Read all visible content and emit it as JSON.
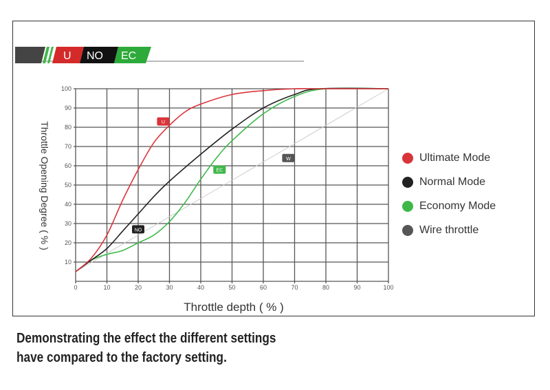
{
  "logo": {
    "segments": [
      "U",
      "NO",
      "EC"
    ],
    "colors": {
      "U": "#d42a2a",
      "NO": "#111111",
      "EC": "#2daa3a"
    }
  },
  "chart_data": {
    "type": "line",
    "xlabel": "Throttle depth ( % )",
    "ylabel": "Throttle Opening Degree ( % )",
    "xlim": [
      0,
      100
    ],
    "ylim": [
      0,
      100
    ],
    "xticks": [
      0,
      10,
      20,
      30,
      40,
      50,
      60,
      70,
      80,
      90,
      100
    ],
    "yticks": [
      10,
      20,
      30,
      40,
      50,
      60,
      70,
      80,
      90,
      100
    ],
    "grid": true,
    "legend_position": "right",
    "series": [
      {
        "name": "Ultimate Mode",
        "tag": "U",
        "color": "#d9343a",
        "x": [
          0,
          5,
          10,
          15,
          20,
          25,
          30,
          35,
          40,
          50,
          60,
          70,
          80,
          100
        ],
        "y": [
          5,
          12,
          24,
          42,
          58,
          72,
          81,
          88,
          92,
          97,
          99,
          100,
          100,
          100
        ]
      },
      {
        "name": "Normal Mode",
        "tag": "NO",
        "color": "#222222",
        "x": [
          0,
          5,
          10,
          15,
          20,
          25,
          30,
          40,
          50,
          60,
          70,
          78,
          100
        ],
        "y": [
          5,
          11,
          17,
          26,
          35,
          44,
          52,
          66,
          79,
          90,
          97,
          100,
          100
        ]
      },
      {
        "name": "Economy Mode",
        "tag": "EC",
        "color": "#3fb84a",
        "x": [
          0,
          5,
          10,
          15,
          20,
          25,
          30,
          35,
          40,
          45,
          50,
          60,
          70,
          80,
          100
        ],
        "y": [
          5,
          11,
          14,
          16,
          20,
          24,
          31,
          41,
          53,
          64,
          73,
          87,
          96,
          100,
          100
        ]
      },
      {
        "name": "Wire throttle",
        "tag": "W",
        "color": "#cccccc",
        "x": [
          0,
          100
        ],
        "y": [
          5,
          100
        ]
      }
    ],
    "tag_positions": [
      {
        "tag": "U",
        "x": 28,
        "y": 83
      },
      {
        "tag": "NO",
        "x": 20,
        "y": 27
      },
      {
        "tag": "EC",
        "x": 46,
        "y": 58
      },
      {
        "tag": "W",
        "x": 68,
        "y": 64
      }
    ]
  },
  "caption": [
    "Demonstrating the effect the different settings",
    "have compared to the factory setting."
  ]
}
